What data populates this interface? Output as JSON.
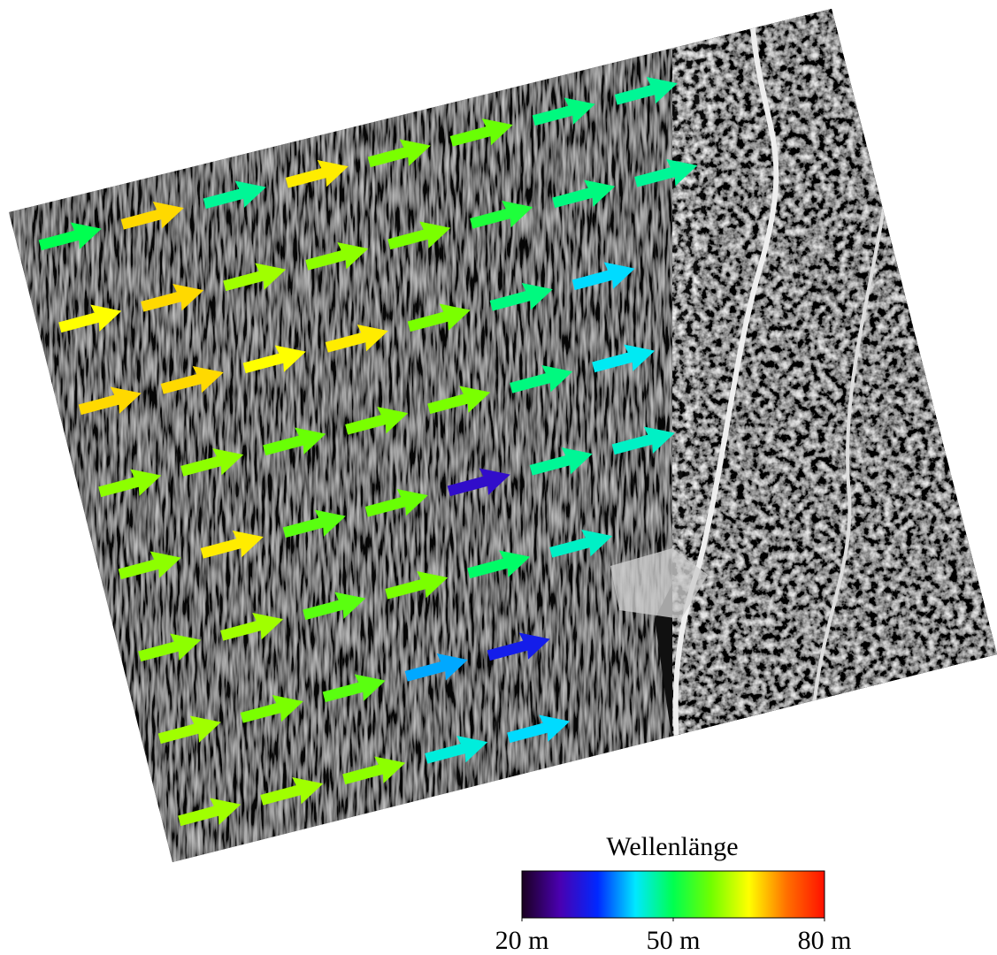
{
  "arrows": {
    "quantity": "wavelength_m",
    "rows": [
      [
        50,
        67,
        47,
        66,
        58,
        57,
        48,
        47
      ],
      [
        65,
        67,
        60,
        59,
        58,
        52,
        48,
        47
      ],
      [
        67,
        67,
        65,
        66,
        58,
        48,
        42
      ],
      [
        59,
        59,
        57,
        58,
        58,
        48,
        43
      ],
      [
        59,
        66,
        56,
        57,
        30,
        47,
        45
      ],
      [
        59,
        60,
        56,
        58,
        49,
        45
      ],
      [
        60,
        58,
        56,
        40,
        33
      ],
      [
        60,
        60,
        59,
        44,
        42
      ]
    ]
  },
  "legend": {
    "title": "Wellenlänge",
    "range": [
      20,
      80
    ],
    "colormap": [
      "#1a0020",
      "#4a00b0",
      "#0028ff",
      "#00e8ff",
      "#00ff50",
      "#70ff00",
      "#ffff00",
      "#ff7000",
      "#ff1000"
    ],
    "ticks": [
      {
        "value": 20,
        "label": "20 m"
      },
      {
        "value": 50,
        "label": "50 m"
      },
      {
        "value": 80,
        "label": "80 m"
      }
    ]
  }
}
